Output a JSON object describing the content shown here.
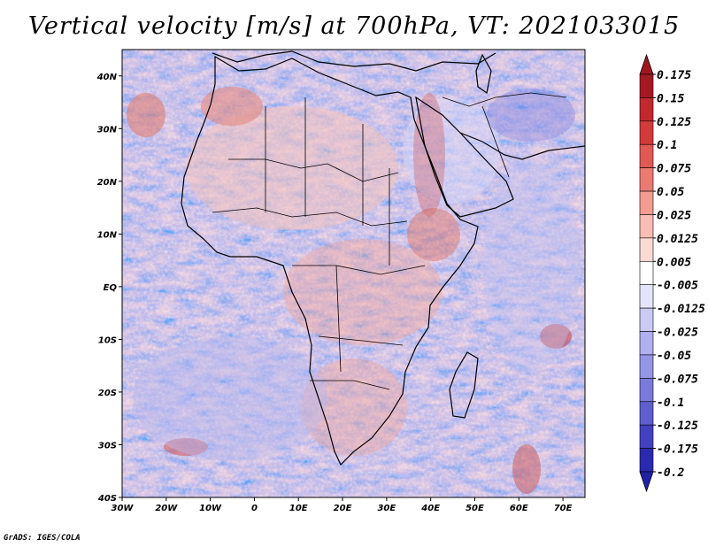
{
  "title": "Vertical velocity [m/s] at 700hPa, VT: 2021033015",
  "footer": "GrADS: IGES/COLA",
  "map": {
    "lon_range": [
      -30,
      75
    ],
    "lat_range": [
      -40,
      45
    ],
    "x_ticks": [
      {
        "lon": -30,
        "label": "30W"
      },
      {
        "lon": -20,
        "label": "20W"
      },
      {
        "lon": -10,
        "label": "10W"
      },
      {
        "lon": 0,
        "label": "0"
      },
      {
        "lon": 10,
        "label": "10E"
      },
      {
        "lon": 20,
        "label": "20E"
      },
      {
        "lon": 30,
        "label": "30E"
      },
      {
        "lon": 40,
        "label": "40E"
      },
      {
        "lon": 50,
        "label": "50E"
      },
      {
        "lon": 60,
        "label": "60E"
      },
      {
        "lon": 70,
        "label": "70E"
      }
    ],
    "y_ticks": [
      {
        "lat": 40,
        "label": "40N"
      },
      {
        "lat": 30,
        "label": "30N"
      },
      {
        "lat": 20,
        "label": "20N"
      },
      {
        "lat": 10,
        "label": "10N"
      },
      {
        "lat": 0,
        "label": "EQ"
      },
      {
        "lat": -10,
        "label": "10S"
      },
      {
        "lat": -20,
        "label": "20S"
      },
      {
        "lat": -30,
        "label": "30S"
      },
      {
        "lat": -40,
        "label": "40S"
      }
    ]
  },
  "colorbar": {
    "levels": [
      {
        "label": "0.175",
        "color": "#a51a22"
      },
      {
        "label": "0.15",
        "color": "#c02a2f"
      },
      {
        "label": "0.125",
        "color": "#d23b3b"
      },
      {
        "label": "0.1",
        "color": "#e05a55"
      },
      {
        "label": "0.075",
        "color": "#ea7a72"
      },
      {
        "label": "0.05",
        "color": "#f29c92"
      },
      {
        "label": "0.025",
        "color": "#f8bdb4"
      },
      {
        "label": "0.0125",
        "color": "#fcdad4"
      },
      {
        "label": "0.005",
        "color": "#fdeeea"
      },
      {
        "label": "-0.005",
        "color": "#ffffff"
      },
      {
        "label": "-0.0125",
        "color": "#e4e4fa"
      },
      {
        "label": "-0.025",
        "color": "#cacaf5"
      },
      {
        "label": "-0.05",
        "color": "#b0b0ef"
      },
      {
        "label": "-0.075",
        "color": "#9595e6"
      },
      {
        "label": "-0.1",
        "color": "#7a7adc"
      },
      {
        "label": "-0.125",
        "color": "#5e5ecf"
      },
      {
        "label": "-0.175",
        "color": "#4242c0"
      },
      {
        "label": "-0.2",
        "color": "#2a2aae"
      }
    ],
    "top_color": "#a01620",
    "bottom_color": "#2020a8",
    "neutral_color": "#ffffff"
  }
}
